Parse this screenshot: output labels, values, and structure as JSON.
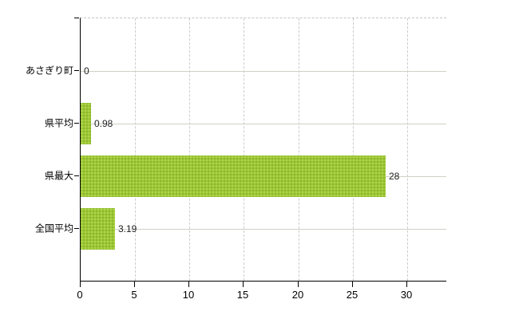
{
  "chart_data": {
    "type": "bar",
    "orientation": "horizontal",
    "title": "",
    "xlabel": "",
    "ylabel": "",
    "categories": [
      "あさぎり町",
      "県平均",
      "県最大",
      "全国平均"
    ],
    "values": [
      0,
      0.98,
      28,
      3.19
    ],
    "value_labels": [
      "0",
      "0.98",
      "28",
      "3.19"
    ],
    "x_ticks": [
      0,
      5,
      10,
      15,
      20,
      25,
      30
    ],
    "x_tick_labels": [
      "0",
      "5",
      "10",
      "15",
      "20",
      "25",
      "30"
    ],
    "xlim": [
      0,
      33.6
    ],
    "grid": "on",
    "legend_position": "none",
    "colors": {
      "bar_base": "#9ec636",
      "bar_dot_light": "#b6da4f",
      "bar_dot_dark": "#83b32a",
      "vertical_grid": "#cbcbcb",
      "horizontal_grid": "#ccd3c6",
      "axis": "#000000",
      "text": "#000000",
      "value_text": "#222222",
      "background": "#ffffff"
    }
  }
}
